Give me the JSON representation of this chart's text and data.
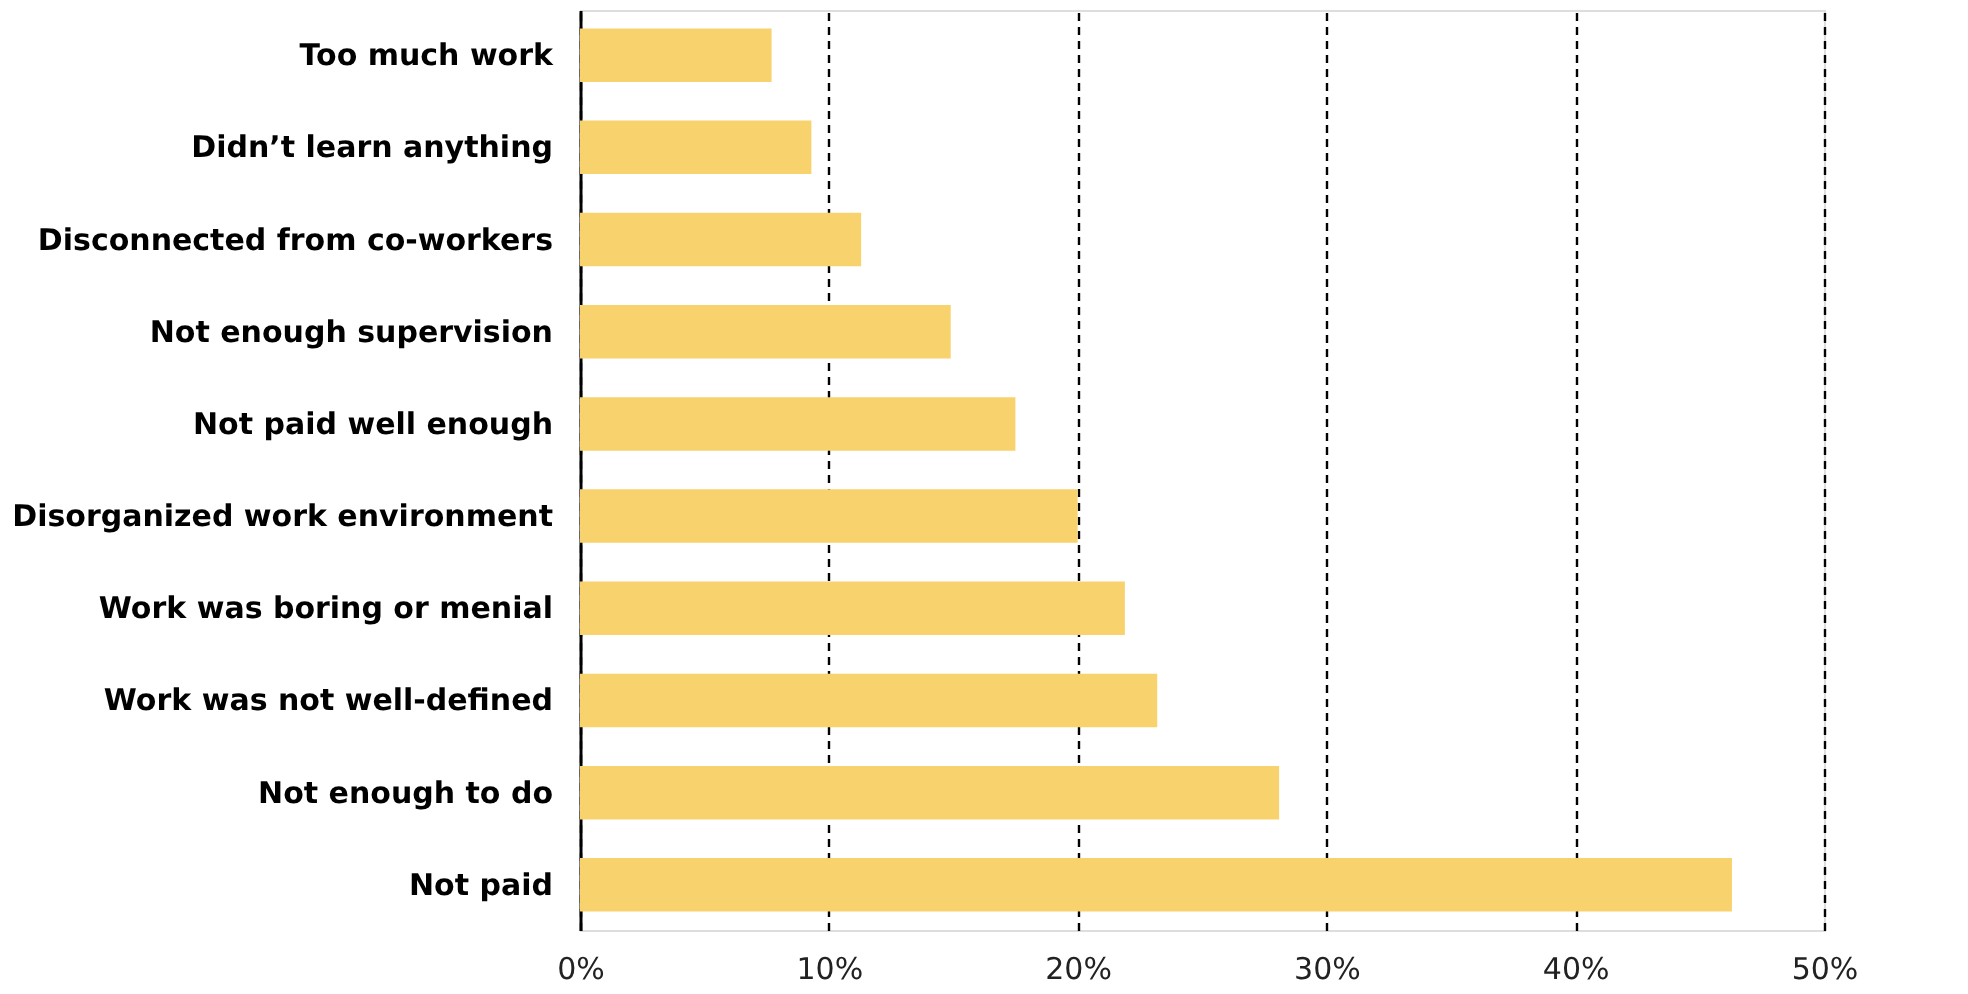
{
  "chart_data": {
    "type": "bar",
    "orientation": "horizontal",
    "categories": [
      "Too much work",
      "Didn’t learn anything",
      "Disconnected from co-workers",
      "Not enough supervision",
      "Not paid well enough",
      "Disorganized work environment",
      "Work was boring or menial",
      "Work was not well-defined",
      "Not enough to do",
      "Not paid"
    ],
    "values": [
      7.7,
      9.3,
      11.3,
      14.9,
      17.5,
      20.0,
      21.9,
      23.2,
      28.1,
      46.3
    ],
    "color": "#f8d26d",
    "xlim": [
      0,
      50
    ],
    "xticks": [
      {
        "value": 0,
        "label": "0%"
      },
      {
        "value": 10,
        "label": "10%"
      },
      {
        "value": 20,
        "label": "20%"
      },
      {
        "value": 30,
        "label": "30%"
      },
      {
        "value": 40,
        "label": "40%"
      },
      {
        "value": 50,
        "label": "50%"
      }
    ],
    "grid": "x"
  }
}
